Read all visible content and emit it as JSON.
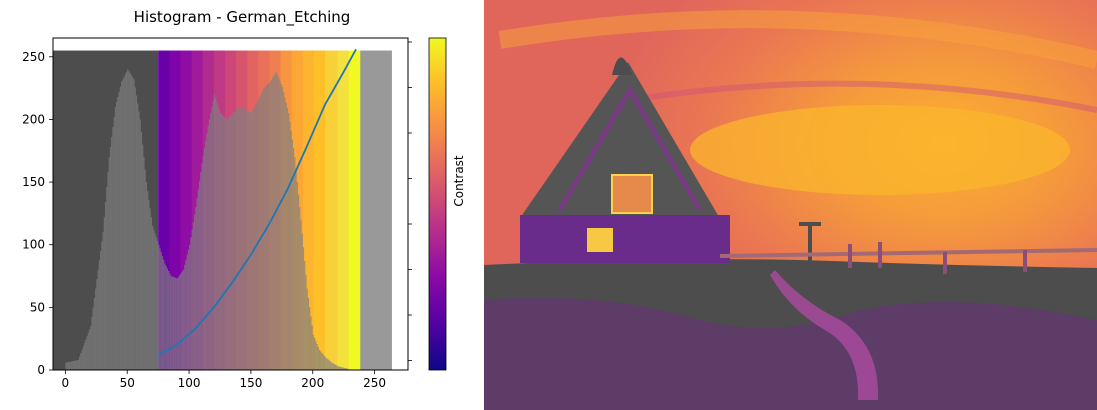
{
  "chart_data": {
    "type": "bar",
    "title": "Histogram - German_Etching",
    "xlabel": "",
    "ylabel": "",
    "xlim": [
      -10,
      277
    ],
    "ylim": [
      0,
      265
    ],
    "x_ticks": [
      "0",
      "50",
      "100",
      "150",
      "200",
      "250"
    ],
    "y_ticks": [
      "0",
      "50",
      "100",
      "150",
      "200",
      "250"
    ],
    "grid": false,
    "histogram_envelope": [
      [
        0,
        6
      ],
      [
        10,
        8
      ],
      [
        20,
        35
      ],
      [
        30,
        110
      ],
      [
        35,
        170
      ],
      [
        40,
        210
      ],
      [
        45,
        230
      ],
      [
        50,
        240
      ],
      [
        55,
        232
      ],
      [
        60,
        200
      ],
      [
        65,
        150
      ],
      [
        70,
        115
      ],
      [
        75,
        100
      ],
      [
        80,
        85
      ],
      [
        85,
        75
      ],
      [
        90,
        73
      ],
      [
        95,
        80
      ],
      [
        100,
        100
      ],
      [
        105,
        130
      ],
      [
        110,
        165
      ],
      [
        115,
        195
      ],
      [
        120,
        220
      ],
      [
        125,
        205
      ],
      [
        130,
        200
      ],
      [
        135,
        205
      ],
      [
        140,
        210
      ],
      [
        145,
        208
      ],
      [
        150,
        205
      ],
      [
        155,
        215
      ],
      [
        160,
        225
      ],
      [
        165,
        230
      ],
      [
        170,
        238
      ],
      [
        175,
        226
      ],
      [
        180,
        205
      ],
      [
        185,
        170
      ],
      [
        190,
        120
      ],
      [
        195,
        65
      ],
      [
        200,
        28
      ],
      [
        205,
        16
      ],
      [
        210,
        10
      ],
      [
        215,
        6
      ],
      [
        220,
        3
      ],
      [
        228,
        1
      ]
    ],
    "gray_regions": [
      {
        "from": -10,
        "to": 75,
        "color": "#4d4d4d"
      },
      {
        "from": 238,
        "to": 264,
        "color": "#999999"
      }
    ],
    "color_bands": [
      {
        "from": 75,
        "to": 84,
        "color": "#6a00a8"
      },
      {
        "from": 84,
        "to": 93,
        "color": "#7e03a8"
      },
      {
        "from": 93,
        "to": 102,
        "color": "#8f0da4"
      },
      {
        "from": 102,
        "to": 111,
        "color": "#a01a9c"
      },
      {
        "from": 111,
        "to": 120,
        "color": "#b12a90"
      },
      {
        "from": 120,
        "to": 129,
        "color": "#bf3984"
      },
      {
        "from": 129,
        "to": 138,
        "color": "#cc4778"
      },
      {
        "from": 138,
        "to": 147,
        "color": "#d6556d"
      },
      {
        "from": 147,
        "to": 156,
        "color": "#e16462"
      },
      {
        "from": 156,
        "to": 165,
        "color": "#e97158"
      },
      {
        "from": 165,
        "to": 174,
        "color": "#f07f4f"
      },
      {
        "from": 174,
        "to": 183,
        "color": "#f89540"
      },
      {
        "from": 183,
        "to": 192,
        "color": "#fca636"
      },
      {
        "from": 192,
        "to": 201,
        "color": "#fdb42f"
      },
      {
        "from": 201,
        "to": 210,
        "color": "#fec029"
      },
      {
        "from": 210,
        "to": 220,
        "color": "#f8d13a"
      },
      {
        "from": 220,
        "to": 229,
        "color": "#f3e13e"
      },
      {
        "from": 229,
        "to": 238,
        "color": "#f0f921"
      }
    ],
    "series": [
      {
        "x": [
          75,
          90,
          105,
          120,
          135,
          150,
          165,
          180,
          195,
          210,
          225,
          235
        ],
        "y": [
          12,
          20,
          33,
          50,
          70,
          92,
          117,
          145,
          178,
          212,
          238,
          256
        ],
        "color": "#1f77b4"
      }
    ],
    "colorbar": {
      "label": "Contrast",
      "colormap": [
        "#0d0887",
        "#5302a3",
        "#8b0aa5",
        "#b83289",
        "#db5c68",
        "#f48849",
        "#febc2a",
        "#f0f921"
      ]
    }
  }
}
